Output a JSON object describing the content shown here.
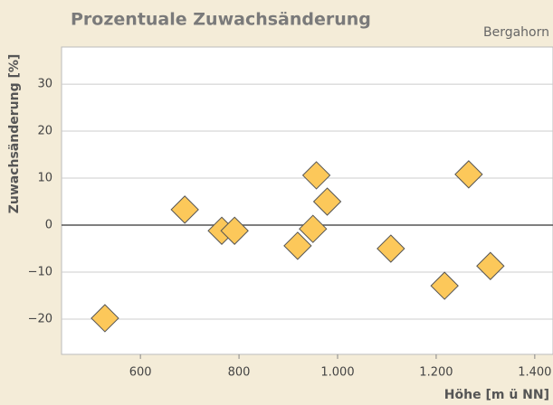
{
  "chart_data": {
    "type": "scatter",
    "title": "Prozentuale Zuwachsänderung",
    "subtitle": "Bergahorn",
    "x_label": "Höhe [m ü NN]",
    "y_label": "Zuwachsänderung [%]",
    "x": [
      528,
      690,
      765,
      791,
      919,
      950,
      957,
      979,
      1108,
      1217,
      1266,
      1310
    ],
    "values": [
      -19.8,
      3.3,
      -1.2,
      -1.2,
      -4.4,
      -0.8,
      10.6,
      5.0,
      -5.0,
      -12.9,
      10.8,
      -8.7
    ],
    "color": "#fcc85a",
    "xlim": [
      440,
      1437
    ],
    "ylim": [
      -27.5,
      37.9
    ],
    "xticks": [
      600,
      800,
      {
        "value": 1000,
        "label": "1.000"
      },
      {
        "value": 1200,
        "label": "1.200"
      },
      {
        "value": 1400,
        "label": "1.400"
      }
    ],
    "yticks": [
      {
        "value": -20,
        "label": "−20"
      },
      {
        "value": -10,
        "label": "−10"
      },
      0,
      10,
      20,
      30
    ],
    "grid": true
  }
}
